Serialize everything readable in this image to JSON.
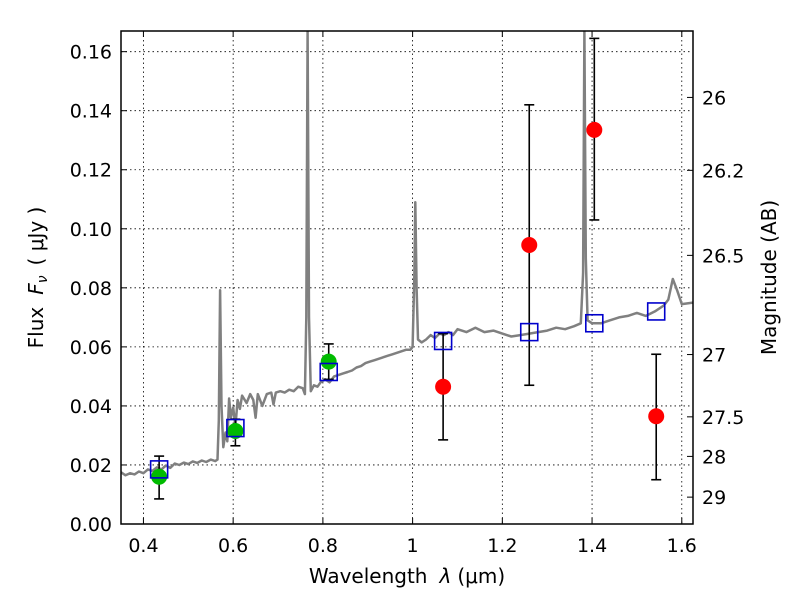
{
  "chart_data": {
    "type": "scatter",
    "xlabel_prefix": "Wavelength",
    "xlabel_symbol": "λ",
    "xlabel_units": "(μm)",
    "ylabel_prefix": "Flux",
    "ylabel_symbol": "F",
    "ylabel_subscript": "ν",
    "ylabel_units": "( μJy )",
    "y2label": "Magnitude (AB)",
    "xlim": [
      0.35,
      1.625
    ],
    "ylim": [
      0.0,
      0.167
    ],
    "x_ticks": [
      0.4,
      0.6,
      0.8,
      1.0,
      1.2,
      1.4,
      1.6
    ],
    "x_tick_labels": [
      "0.4",
      "0.6",
      "0.8",
      "1",
      "1.2",
      "1.4",
      "1.6"
    ],
    "y_ticks": [
      0.0,
      0.02,
      0.04,
      0.06,
      0.08,
      0.1,
      0.12,
      0.14,
      0.16
    ],
    "y_tick_labels": [
      "0.00",
      "0.02",
      "0.04",
      "0.06",
      "0.08",
      "0.10",
      "0.12",
      "0.14",
      "0.16"
    ],
    "y2_ticks": [
      {
        "label": "26",
        "flux": 0.1445
      },
      {
        "label": "26.2",
        "flux": 0.1198
      },
      {
        "label": "26.5",
        "flux": 0.091
      },
      {
        "label": "27",
        "flux": 0.0574
      },
      {
        "label": "27.5",
        "flux": 0.0363
      },
      {
        "label": "28",
        "flux": 0.0229
      },
      {
        "label": "29",
        "flux": 0.0091
      }
    ],
    "grid": true,
    "colors": {
      "spectrum": "#808080",
      "model_box": "#0000cc",
      "green": "#00bb00",
      "red": "#ff0000",
      "errorbar": "#000000"
    },
    "series": [
      {
        "kind": "spectrum",
        "points": [
          [
            0.35,
            0.0175
          ],
          [
            0.36,
            0.0165
          ],
          [
            0.37,
            0.0172
          ],
          [
            0.38,
            0.0168
          ],
          [
            0.39,
            0.0178
          ],
          [
            0.4,
            0.0172
          ],
          [
            0.41,
            0.0185
          ],
          [
            0.42,
            0.018
          ],
          [
            0.43,
            0.0192
          ],
          [
            0.44,
            0.0185
          ],
          [
            0.45,
            0.0198
          ],
          [
            0.46,
            0.019
          ],
          [
            0.47,
            0.0205
          ],
          [
            0.48,
            0.02
          ],
          [
            0.49,
            0.0208
          ],
          [
            0.5,
            0.0203
          ],
          [
            0.51,
            0.0212
          ],
          [
            0.52,
            0.0207
          ],
          [
            0.53,
            0.0215
          ],
          [
            0.54,
            0.021
          ],
          [
            0.55,
            0.0218
          ],
          [
            0.56,
            0.0213
          ],
          [
            0.565,
            0.0218
          ],
          [
            0.568,
            0.035
          ],
          [
            0.571,
            0.0792
          ],
          [
            0.574,
            0.04
          ],
          [
            0.578,
            0.026
          ],
          [
            0.583,
            0.031
          ],
          [
            0.587,
            0.028
          ],
          [
            0.591,
            0.0425
          ],
          [
            0.595,
            0.036
          ],
          [
            0.6,
            0.0395
          ],
          [
            0.605,
            0.033
          ],
          [
            0.61,
            0.042
          ],
          [
            0.615,
            0.039
          ],
          [
            0.62,
            0.0435
          ],
          [
            0.63,
            0.041
          ],
          [
            0.638,
            0.044
          ],
          [
            0.645,
            0.042
          ],
          [
            0.65,
            0.036
          ],
          [
            0.655,
            0.044
          ],
          [
            0.665,
            0.04
          ],
          [
            0.675,
            0.044
          ],
          [
            0.685,
            0.0445
          ],
          [
            0.69,
            0.0405
          ],
          [
            0.695,
            0.0445
          ],
          [
            0.705,
            0.045
          ],
          [
            0.715,
            0.0445
          ],
          [
            0.725,
            0.0455
          ],
          [
            0.735,
            0.045
          ],
          [
            0.745,
            0.0465
          ],
          [
            0.755,
            0.046
          ],
          [
            0.76,
            0.044
          ],
          [
            0.763,
            0.07
          ],
          [
            0.766,
            0.167
          ],
          [
            0.769,
            0.07
          ],
          [
            0.773,
            0.045
          ],
          [
            0.78,
            0.047
          ],
          [
            0.788,
            0.0465
          ],
          [
            0.795,
            0.048
          ],
          [
            0.805,
            0.049
          ],
          [
            0.815,
            0.048
          ],
          [
            0.825,
            0.05
          ],
          [
            0.835,
            0.0505
          ],
          [
            0.845,
            0.051
          ],
          [
            0.855,
            0.0515
          ],
          [
            0.865,
            0.052
          ],
          [
            0.875,
            0.053
          ],
          [
            0.885,
            0.0535
          ],
          [
            0.895,
            0.0545
          ],
          [
            0.905,
            0.055
          ],
          [
            0.915,
            0.0555
          ],
          [
            0.925,
            0.056
          ],
          [
            0.935,
            0.0565
          ],
          [
            0.945,
            0.057
          ],
          [
            0.955,
            0.0575
          ],
          [
            0.965,
            0.058
          ],
          [
            0.975,
            0.0585
          ],
          [
            0.985,
            0.059
          ],
          [
            0.995,
            0.059
          ],
          [
            1.0,
            0.06
          ],
          [
            1.004,
            0.085
          ],
          [
            1.006,
            0.109
          ],
          [
            1.009,
            0.08
          ],
          [
            1.012,
            0.0625
          ],
          [
            1.02,
            0.0615
          ],
          [
            1.03,
            0.0625
          ],
          [
            1.04,
            0.064
          ],
          [
            1.05,
            0.063
          ],
          [
            1.06,
            0.0645
          ],
          [
            1.07,
            0.064
          ],
          [
            1.08,
            0.065
          ],
          [
            1.09,
            0.064
          ],
          [
            1.1,
            0.066
          ],
          [
            1.12,
            0.065
          ],
          [
            1.14,
            0.0665
          ],
          [
            1.16,
            0.065
          ],
          [
            1.18,
            0.0655
          ],
          [
            1.2,
            0.0645
          ],
          [
            1.22,
            0.0635
          ],
          [
            1.24,
            0.064
          ],
          [
            1.26,
            0.0645
          ],
          [
            1.28,
            0.065
          ],
          [
            1.3,
            0.0655
          ],
          [
            1.32,
            0.0665
          ],
          [
            1.34,
            0.066
          ],
          [
            1.36,
            0.067
          ],
          [
            1.375,
            0.068
          ],
          [
            1.38,
            0.085
          ],
          [
            1.383,
            0.167
          ],
          [
            1.386,
            0.09
          ],
          [
            1.39,
            0.069
          ],
          [
            1.4,
            0.068
          ],
          [
            1.42,
            0.068
          ],
          [
            1.44,
            0.069
          ],
          [
            1.46,
            0.07
          ],
          [
            1.48,
            0.0705
          ],
          [
            1.5,
            0.0715
          ],
          [
            1.52,
            0.0705
          ],
          [
            1.54,
            0.072
          ],
          [
            1.56,
            0.074
          ],
          [
            1.57,
            0.076
          ],
          [
            1.58,
            0.083
          ],
          [
            1.59,
            0.079
          ],
          [
            1.6,
            0.0745
          ],
          [
            1.625,
            0.075
          ]
        ]
      },
      {
        "kind": "model_boxes",
        "points": [
          [
            0.435,
            0.0185
          ],
          [
            0.605,
            0.0325
          ],
          [
            0.813,
            0.0515
          ],
          [
            1.068,
            0.062
          ],
          [
            1.26,
            0.065
          ],
          [
            1.405,
            0.068
          ],
          [
            1.543,
            0.072
          ]
        ]
      },
      {
        "kind": "green",
        "points": [
          {
            "x": 0.435,
            "y": 0.016,
            "lo": 0.0085,
            "hi": 0.023
          },
          {
            "x": 0.605,
            "y": 0.0315,
            "lo": 0.0265,
            "hi": 0.0355
          },
          {
            "x": 0.813,
            "y": 0.055,
            "lo": 0.049,
            "hi": 0.061
          }
        ]
      },
      {
        "kind": "red",
        "points": [
          {
            "x": 1.068,
            "y": 0.0465,
            "lo": 0.0285,
            "hi": 0.0645
          },
          {
            "x": 1.26,
            "y": 0.0945,
            "lo": 0.047,
            "hi": 0.142
          },
          {
            "x": 1.405,
            "y": 0.1335,
            "lo": 0.103,
            "hi": 0.1645
          },
          {
            "x": 1.543,
            "y": 0.0365,
            "lo": 0.015,
            "hi": 0.0575
          }
        ]
      }
    ]
  }
}
